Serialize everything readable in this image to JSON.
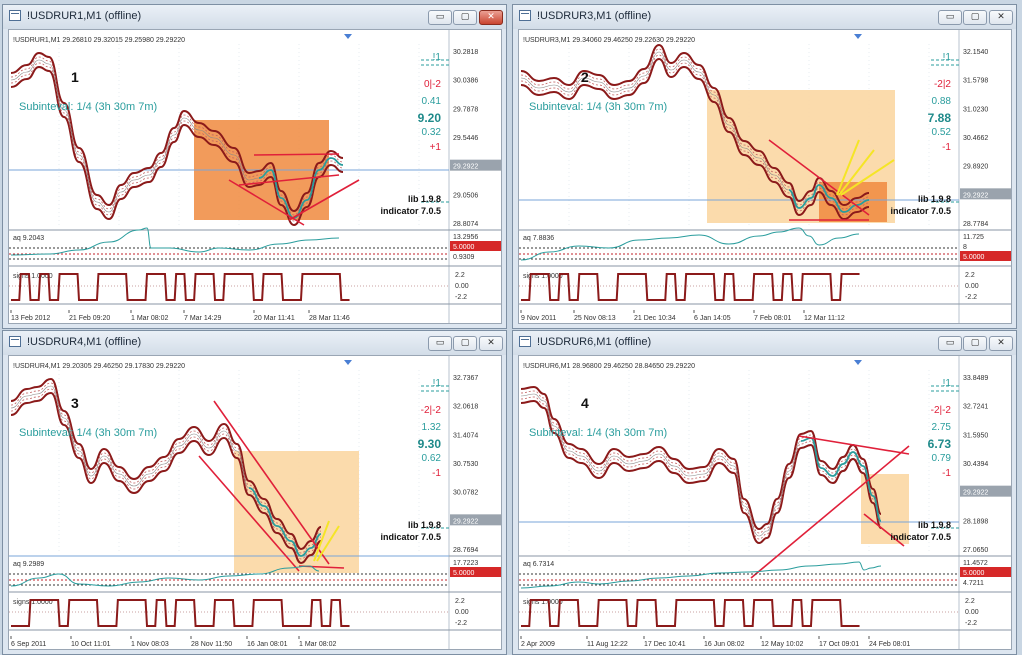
{
  "windows": [
    {
      "title": "!USDRUR1,M1 (offline)",
      "header": "!USDRUR1,M1  29.26810 29.32015 29.25980 29.29220",
      "big_number": "1",
      "subinterval": "Subinteval: 1/4 (3h 30m 7m)",
      "stats": [
        "!1",
        "0|-2",
        "0.41",
        "9.20",
        "0.32",
        "+1"
      ],
      "lib": "lib 1.9.8",
      "indicator": "indicator 7.0.5",
      "price_labels": [
        "30.2818",
        "30.0386",
        "29.7878",
        "29.5446",
        "29.2922",
        "29.0506",
        "28.8074"
      ],
      "aq": "aq 9.2043",
      "aq_scale": [
        "13.2956",
        "5.0000",
        "0.9309"
      ],
      "signs": "signs 1.0000",
      "signs_scale": [
        "2.2",
        "0.00",
        "-2.2"
      ],
      "time_labels": [
        "13 Feb 2012",
        "21 Feb 09:20",
        "1 Mar 08:02",
        "7 Mar 14:29",
        "20 Mar 11:41",
        "28 Mar 11:46"
      ]
    },
    {
      "title": "!USDRUR3,M1 (offline)",
      "header": "!USDRUR3,M1  29.34060 29.46250 29.22630 29.29220",
      "big_number": "2",
      "subinterval": "Subinteval: 1/4 (3h 30m 7m)",
      "stats": [
        "!1",
        "-2|2",
        "0.88",
        "7.88",
        "0.52",
        "-1"
      ],
      "lib": "lib 1.9.8",
      "indicator": "indicator 7.0.5",
      "price_labels": [
        "32.1540",
        "31.5798",
        "31.0230",
        "30.4662",
        "29.8920",
        "29.2922",
        "28.7784"
      ],
      "aq": "aq 7.8836",
      "aq_scale": [
        "11.725",
        "8",
        "5.0000"
      ],
      "signs": "signs 1.0000",
      "signs_scale": [
        "2.2",
        "0.00",
        "-2.2"
      ],
      "time_labels": [
        "9 Nov 2011",
        "25 Nov 08:13",
        "21 Dec 10:34",
        "6 Jan 14:05",
        "7 Feb 08:01",
        "12 Mar 11:12"
      ]
    },
    {
      "title": "!USDRUR4,M1 (offline)",
      "header": "!USDRUR4,M1  29.20305 29.46250 29.17830 29.29220",
      "big_number": "3",
      "subinterval": "Subinteval: 1/4 (3h 30m 7m)",
      "stats": [
        "!1",
        "-2|-2",
        "1.32",
        "9.30",
        "0.62",
        "-1"
      ],
      "lib": "lib 1.9.8",
      "indicator": "indicator 7.0.5",
      "price_labels": [
        "32.7367",
        "32.0618",
        "31.4074",
        "30.7530",
        "30.0782",
        "29.2922",
        "28.7694"
      ],
      "aq": "aq 9.2989",
      "aq_scale": [
        "17.7223",
        "5.0000"
      ],
      "signs": "signs 1.0000",
      "signs_scale": [
        "2.2",
        "0.00",
        "-2.2"
      ],
      "time_labels": [
        "6 Sep 2011",
        "10 Oct 11:01",
        "1 Nov 08:03",
        "28 Nov 11:50",
        "16 Jan 08:01",
        "1 Mar 08:02"
      ]
    },
    {
      "title": "!USDRUR6,M1 (offline)",
      "header": "!USDRUR6,M1  28.96800 29.46250 28.84650 29.29220",
      "big_number": "4",
      "subinterval": "Subinteval: 1/4 (3h 30m 7m)",
      "stats": [
        "!1",
        "-2|-2",
        "2.75",
        "6.73",
        "0.79",
        "-1"
      ],
      "lib": "lib 1.9.8",
      "indicator": "indicator 7.0.5",
      "price_labels": [
        "33.8489",
        "32.7241",
        "31.5950",
        "30.4394",
        "29.2922",
        "28.1898",
        "27.0650"
      ],
      "aq": "aq 6.7314",
      "aq_scale": [
        "11.4572",
        "5.0000",
        "4.7211"
      ],
      "signs": "signs 1.0000",
      "signs_scale": [
        "2.2",
        "0.00",
        "-2.2"
      ],
      "time_labels": [
        "2 Apr 2009",
        "11 Aug 12:22",
        "17 Dec 10:41",
        "16 Jun 08:02",
        "12 May 10:02",
        "17 Oct 09:01",
        "24 Feb 08:01"
      ]
    }
  ],
  "window_buttons": {
    "minimize": "▭",
    "maximize": "▢",
    "close": "✕"
  },
  "colors": {
    "price_line": "#8b1a1a",
    "accent": "#2a9d9d",
    "highlight_dark": "#f08a3e",
    "highlight_light": "#fbd9a8",
    "trend_line": "#e0203a",
    "fan_line": "#f5e526"
  }
}
